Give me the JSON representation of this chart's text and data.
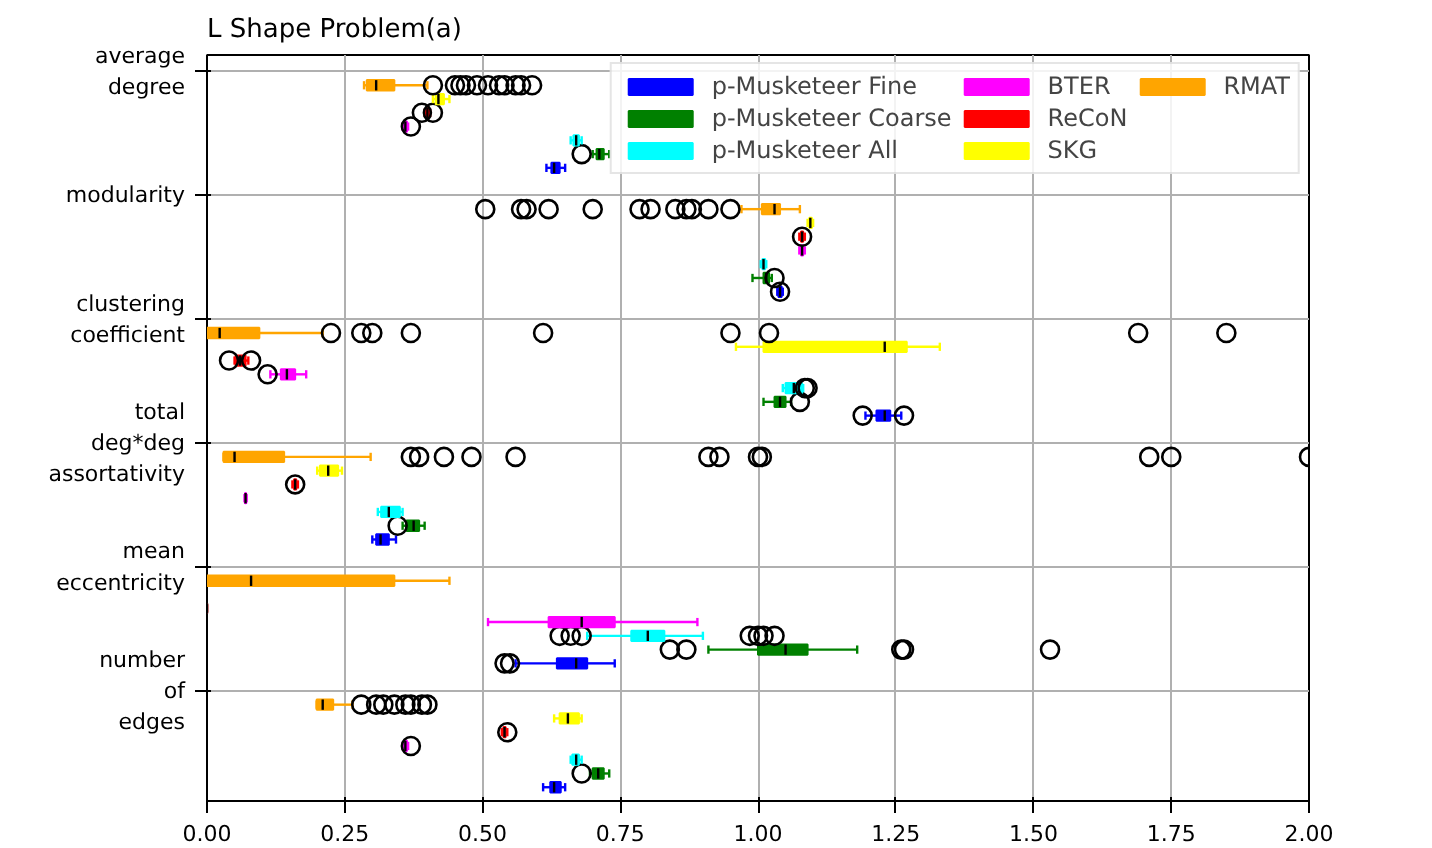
{
  "chart_data": {
    "type": "box",
    "title": "L Shape Problem(a)",
    "orientation": "horizontal",
    "categories": [
      "average\ndegree",
      "modularity",
      "clustering\ncoefficient",
      "total\ndeg*deg\nassortativity",
      "mean\neccentricity",
      "number\nof\nedges"
    ],
    "xlim": [
      0,
      2
    ],
    "xticks": [
      {
        "value": 0,
        "label": "0.00"
      },
      {
        "value": 0.25,
        "label": "0.25"
      },
      {
        "value": 0.5,
        "label": "0.50"
      },
      {
        "value": 0.75,
        "label": "0.75"
      },
      {
        "value": 1,
        "label": "1.00"
      },
      {
        "value": 1.25,
        "label": "1.25"
      },
      {
        "value": 1.5,
        "label": "1.50"
      },
      {
        "value": 1.75,
        "label": "1.75"
      },
      {
        "value": 2,
        "label": "2.00"
      }
    ],
    "grid": true,
    "legend": "top right",
    "series": [
      {
        "name": "p-Musketeer Fine",
        "color": "#0000ff",
        "boxes": [
          {
            "low": 0.616,
            "q1": 0.625,
            "median": 0.63,
            "q3": 0.64,
            "high": 0.65
          },
          {
            "low": 1.035,
            "q1": 1.037,
            "median": 1.04,
            "q3": 1.043,
            "high": 1.045,
            "outliers": [
              1.04
            ]
          },
          {
            "low": 1.195,
            "q1": 1.215,
            "median": 1.23,
            "q3": 1.24,
            "high": 1.26,
            "outliers": [
              1.19,
              1.265
            ]
          },
          {
            "low": 0.3,
            "q1": 0.307,
            "median": 0.315,
            "q3": 0.33,
            "high": 0.343
          },
          {
            "low": 0.56,
            "q1": 0.635,
            "median": 0.67,
            "q3": 0.69,
            "high": 0.74,
            "outliers": [
              0.54,
              0.55
            ]
          },
          {
            "low": 0.61,
            "q1": 0.623,
            "median": 0.63,
            "q3": 0.642,
            "high": 0.65
          }
        ]
      },
      {
        "name": "p-Musketeer Coarse",
        "color": "#008000",
        "boxes": [
          {
            "low": 0.7,
            "q1": 0.707,
            "median": 0.712,
            "q3": 0.72,
            "high": 0.73,
            "outliers": [
              0.68
            ]
          },
          {
            "low": 0.99,
            "q1": 1.01,
            "median": 1.015,
            "q3": 1.02,
            "high": 1.025,
            "outliers": [
              1.03
            ]
          },
          {
            "low": 1.01,
            "q1": 1.03,
            "median": 1.04,
            "q3": 1.05,
            "high": 1.06,
            "outliers": [
              1.076
            ]
          },
          {
            "low": 0.355,
            "q1": 0.362,
            "median": 0.375,
            "q3": 0.385,
            "high": 0.395,
            "outliers": [
              0.346
            ]
          },
          {
            "low": 0.91,
            "q1": 1.0,
            "median": 1.05,
            "q3": 1.09,
            "high": 1.18,
            "outliers": [
              0.84,
              0.87,
              1.26,
              1.265,
              1.53
            ]
          },
          {
            "low": 0.695,
            "q1": 0.7,
            "median": 0.71,
            "q3": 0.72,
            "high": 0.73,
            "outliers": [
              0.68
            ]
          }
        ]
      },
      {
        "name": "p-Musketeer All",
        "color": "#00ffff",
        "boxes": [
          {
            "low": 0.66,
            "q1": 0.665,
            "median": 0.67,
            "q3": 0.675,
            "high": 0.68
          },
          {
            "low": 1.005,
            "q1": 1.008,
            "median": 1.01,
            "q3": 1.013,
            "high": 1.015
          },
          {
            "low": 1.045,
            "q1": 1.05,
            "median": 1.065,
            "q3": 1.08,
            "high": 1.082,
            "outliers": [
              1.085,
              1.09
            ]
          },
          {
            "low": 0.31,
            "q1": 0.316,
            "median": 0.33,
            "q3": 0.35,
            "high": 0.355
          },
          {
            "low": 0.69,
            "q1": 0.77,
            "median": 0.8,
            "q3": 0.83,
            "high": 0.9,
            "outliers": [
              0.64,
              0.66,
              0.68,
              0.985,
              1.0,
              1.01,
              1.03
            ]
          },
          {
            "low": 0.66,
            "q1": 0.663,
            "median": 0.67,
            "q3": 0.675,
            "high": 0.68
          }
        ]
      },
      {
        "name": "BTER",
        "color": "#ff00ff",
        "boxes": [
          {
            "low": 0.355,
            "q1": 0.357,
            "median": 0.36,
            "q3": 0.363,
            "high": 0.365,
            "outliers": [
              0.37
            ]
          },
          {
            "low": 1.075,
            "q1": 1.078,
            "median": 1.08,
            "q3": 1.082,
            "high": 1.085
          },
          {
            "low": 0.115,
            "q1": 0.134,
            "median": 0.145,
            "q3": 0.16,
            "high": 0.18,
            "outliers": [
              0.11
            ]
          },
          {
            "low": 0.068,
            "q1": 0.069,
            "median": 0.07,
            "q3": 0.071,
            "high": 0.072
          },
          {
            "low": 0.51,
            "q1": 0.62,
            "median": 0.68,
            "q3": 0.74,
            "high": 0.89
          },
          {
            "low": 0.355,
            "q1": 0.357,
            "median": 0.36,
            "q3": 0.363,
            "high": 0.365,
            "outliers": [
              0.37
            ]
          }
        ]
      },
      {
        "name": "ReCoN",
        "color": "#ff0000",
        "boxes": [
          {
            "low": 0.395,
            "q1": 0.398,
            "median": 0.4,
            "q3": 0.402,
            "high": 0.405,
            "outliers": [
              0.39,
              0.41
            ]
          },
          {
            "low": 1.075,
            "q1": 1.078,
            "median": 1.08,
            "q3": 1.082,
            "high": 1.085,
            "outliers": [
              1.08
            ]
          },
          {
            "low": 0.05,
            "q1": 0.052,
            "median": 0.06,
            "q3": 0.07,
            "high": 0.075,
            "outliers": [
              0.04,
              0.08
            ]
          },
          {
            "low": 0.155,
            "q1": 0.158,
            "median": 0.16,
            "q3": 0.162,
            "high": 0.165,
            "outliers": [
              0.16
            ]
          },
          {
            "low": 0,
            "q1": 0,
            "median": 0,
            "q3": 0,
            "high": 0
          },
          {
            "low": 0.535,
            "q1": 0.538,
            "median": 0.54,
            "q3": 0.542,
            "high": 0.545,
            "outliers": [
              0.545
            ]
          }
        ]
      },
      {
        "name": "SKG",
        "color": "#ffff00",
        "boxes": [
          {
            "low": 0.41,
            "q1": 0.415,
            "median": 0.42,
            "q3": 0.43,
            "high": 0.44
          },
          {
            "low": 1.09,
            "q1": 1.093,
            "median": 1.095,
            "q3": 1.098,
            "high": 1.1
          },
          {
            "low": 0.96,
            "q1": 1.01,
            "median": 1.23,
            "q3": 1.27,
            "high": 1.33
          },
          {
            "low": 0.2,
            "q1": 0.205,
            "median": 0.22,
            "q3": 0.238,
            "high": 0.245
          },
          null,
          {
            "low": 0.63,
            "q1": 0.64,
            "median": 0.655,
            "q3": 0.675,
            "high": 0.68
          }
        ]
      },
      {
        "name": "RMAT",
        "color": "#ffa500",
        "boxes": [
          {
            "low": 0.285,
            "q1": 0.29,
            "median": 0.307,
            "q3": 0.34,
            "high": 0.4,
            "outliers": [
              0.41,
              0.45,
              0.46,
              0.47,
              0.49,
              0.51,
              0.53,
              0.54,
              0.56,
              0.57,
              0.59
            ]
          },
          {
            "low": 0.97,
            "q1": 1.007,
            "median": 1.03,
            "q3": 1.04,
            "high": 1.076,
            "outliers": [
              0.505,
              0.57,
              0.58,
              0.62,
              0.7,
              0.785,
              0.805,
              0.85,
              0.87,
              0.88,
              0.91,
              0.95
            ]
          },
          {
            "low": 0,
            "q1": 0,
            "median": 0.023,
            "q3": 0.095,
            "high": 0.21,
            "outliers": [
              0.225,
              0.28,
              0.3,
              0.37,
              0.61,
              0.95,
              1.02,
              1.69,
              1.85
            ]
          },
          {
            "low": 0.03,
            "q1": 0.03,
            "median": 0.05,
            "q3": 0.14,
            "high": 0.297,
            "outliers": [
              0.37,
              0.385,
              0.43,
              0.48,
              0.56,
              0.91,
              0.93,
              1.0,
              1.007,
              1.71,
              1.75,
              2.0
            ]
          },
          {
            "low": 0,
            "q1": 0,
            "median": 0.08,
            "q3": 0.34,
            "high": 0.44
          },
          {
            "low": 0.199,
            "q1": 0.199,
            "median": 0.21,
            "q3": 0.229,
            "high": 0.264,
            "outliers": [
              0.28,
              0.307,
              0.32,
              0.34,
              0.36,
              0.37,
              0.39,
              0.4
            ]
          }
        ]
      }
    ]
  }
}
